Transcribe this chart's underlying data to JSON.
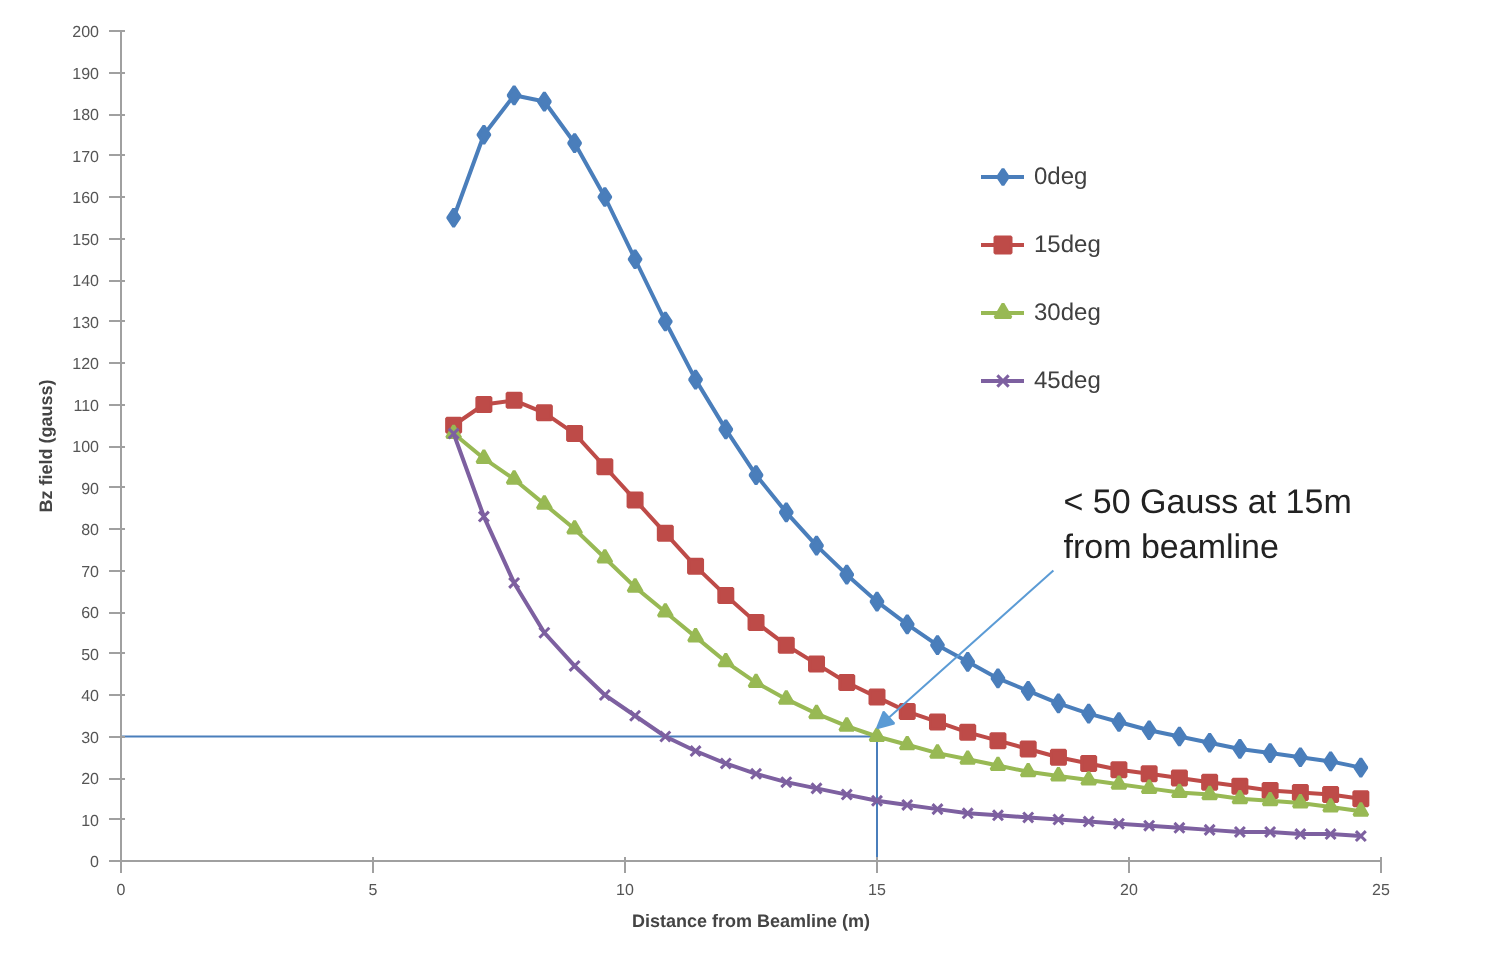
{
  "chart_data": {
    "type": "line",
    "xlabel": "Distance from Beamline (m)",
    "ylabel": "Bz field (gauss)",
    "x": [
      6.6,
      7.2,
      7.8,
      8.4,
      9.0,
      9.6,
      10.2,
      10.8,
      11.4,
      12.0,
      12.6,
      13.2,
      13.8,
      14.4,
      15.0,
      15.6,
      16.2,
      16.8,
      17.4,
      18.0,
      18.6,
      19.2,
      19.8,
      20.4,
      21.0,
      21.6,
      22.2,
      22.8,
      23.4,
      24.0,
      24.6
    ],
    "series": [
      {
        "name": "0deg",
        "color": "#4a7ebb",
        "marker": "diamond",
        "values": [
          155,
          175,
          184.5,
          183,
          173,
          160,
          145,
          130,
          116,
          104,
          93,
          84,
          76,
          69,
          62.5,
          57,
          52,
          48,
          44,
          41,
          38,
          35.5,
          33.5,
          31.5,
          30,
          28.5,
          27,
          26,
          25,
          24,
          22.5
        ]
      },
      {
        "name": "15deg",
        "color": "#be4b48",
        "marker": "square",
        "values": [
          105,
          110,
          111,
          108,
          103,
          95,
          87,
          79,
          71,
          64,
          57.5,
          52,
          47.5,
          43,
          39.5,
          36,
          33.5,
          31,
          29,
          27,
          25,
          23.5,
          22,
          21,
          20,
          19,
          18,
          17,
          16.5,
          16,
          15
        ]
      },
      {
        "name": "30deg",
        "color": "#98b954",
        "marker": "triangle",
        "values": [
          103,
          97,
          92,
          86,
          80,
          73,
          66,
          60,
          54,
          48,
          43,
          39,
          35.5,
          32.5,
          30,
          28,
          26,
          24.5,
          23,
          21.5,
          20.5,
          19.5,
          18.5,
          17.5,
          16.5,
          16,
          15,
          14.5,
          14,
          13,
          12
        ]
      },
      {
        "name": "45deg",
        "color": "#7d60a0",
        "marker": "cross",
        "values": [
          103,
          83,
          67,
          55,
          47,
          40,
          35,
          30,
          26.5,
          23.5,
          21,
          19,
          17.5,
          16,
          14.5,
          13.5,
          12.5,
          11.5,
          11,
          10.5,
          10,
          9.5,
          9,
          8.5,
          8,
          7.5,
          7,
          7,
          6.5,
          6.5,
          6
        ]
      }
    ],
    "xlim": [
      0,
      25
    ],
    "xticks": [
      0,
      5,
      10,
      15,
      20,
      25
    ],
    "ylim": [
      0,
      200
    ],
    "yticks": [
      0,
      10,
      20,
      30,
      40,
      50,
      60,
      70,
      80,
      90,
      100,
      110,
      120,
      130,
      140,
      150,
      160,
      170,
      180,
      190,
      200
    ],
    "grid": false,
    "legend": "right",
    "line_style": "solid",
    "ref_lines": [
      {
        "axis": "y",
        "value": 30,
        "label": null,
        "color": "#4a7ebb"
      },
      {
        "axis": "x",
        "value": 15,
        "label": null,
        "color": "#4a7ebb"
      }
    ],
    "annotations": [
      {
        "text": "< 50 Gauss at 15m\nfrom beamline",
        "x": 15,
        "y": 32
      }
    ]
  }
}
